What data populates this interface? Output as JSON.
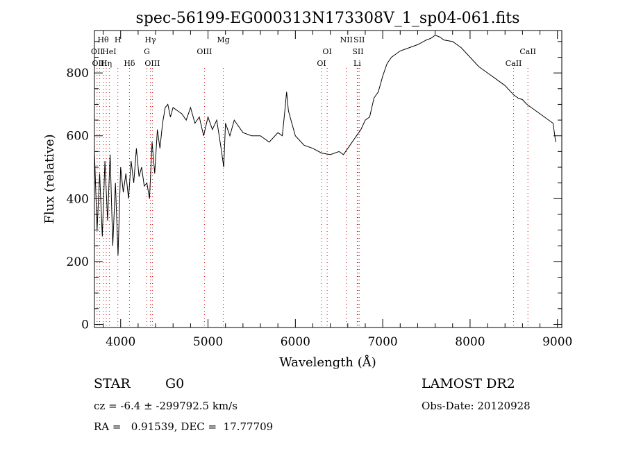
{
  "chart_data": {
    "type": "line",
    "title": "spec-56199-EG000313N173308V_1_sp04-061.fits",
    "xlabel": "Wavelength (Å)",
    "ylabel": "Flux (relative)",
    "xlim": [
      3700,
      9050
    ],
    "ylim": [
      -10,
      935
    ],
    "x_ticks": [
      4000,
      5000,
      6000,
      7000,
      8000,
      9000
    ],
    "y_ticks": [
      0,
      200,
      400,
      600,
      800
    ],
    "grid": false,
    "series": [
      {
        "x": [
          3700,
          3730,
          3760,
          3790,
          3820,
          3850,
          3880,
          3910,
          3940,
          3970,
          4000,
          4030,
          4060,
          4090,
          4120,
          4150,
          4180,
          4210,
          4240,
          4270,
          4300,
          4330,
          4360,
          4390,
          4420,
          4450,
          4480,
          4510,
          4540,
          4570,
          4600,
          4650,
          4700,
          4750,
          4800,
          4850,
          4900,
          4950,
          5000,
          5050,
          5100,
          5150,
          5180,
          5200,
          5250,
          5300,
          5400,
          5500,
          5600,
          5700,
          5800,
          5850,
          5880,
          5900,
          5920,
          5950,
          6000,
          6100,
          6200,
          6300,
          6400,
          6500,
          6550,
          6600,
          6650,
          6700,
          6750,
          6800,
          6850,
          6900,
          6950,
          7000,
          7050,
          7100,
          7150,
          7200,
          7300,
          7400,
          7500,
          7550,
          7600,
          7650,
          7700,
          7800,
          7900,
          8000,
          8100,
          8200,
          8300,
          8400,
          8500,
          8550,
          8600,
          8650,
          8700,
          8800,
          8900,
          8950,
          8980
        ],
        "y": [
          550,
          300,
          480,
          280,
          520,
          330,
          540,
          250,
          450,
          220,
          500,
          420,
          480,
          400,
          520,
          450,
          560,
          470,
          500,
          440,
          450,
          400,
          580,
          480,
          620,
          560,
          640,
          690,
          700,
          660,
          690,
          680,
          670,
          650,
          690,
          640,
          660,
          600,
          660,
          620,
          650,
          560,
          500,
          640,
          600,
          650,
          610,
          600,
          600,
          580,
          610,
          600,
          680,
          740,
          680,
          650,
          600,
          570,
          560,
          545,
          540,
          550,
          540,
          560,
          580,
          600,
          620,
          650,
          660,
          720,
          740,
          790,
          830,
          850,
          860,
          870,
          880,
          890,
          905,
          910,
          920,
          915,
          905,
          900,
          880,
          850,
          820,
          800,
          780,
          760,
          730,
          720,
          715,
          700,
          690,
          670,
          650,
          640,
          580
        ]
      }
    ],
    "line_markers": [
      {
        "x": 3730,
        "label": "OII",
        "row": 2
      },
      {
        "x": 3760,
        "label": "OIII",
        "row": 3
      },
      {
        "x": 3800,
        "label": "Hθ",
        "row": 1
      },
      {
        "x": 3835,
        "label": "Hη",
        "row": 3
      },
      {
        "x": 3870,
        "label": "HeI",
        "row": 2
      },
      {
        "x": 3968,
        "label": "H",
        "row": 1
      },
      {
        "x": 4101,
        "label": "Hδ",
        "row": 3
      },
      {
        "x": 4300,
        "label": "G",
        "row": 2
      },
      {
        "x": 4340,
        "label": "Hγ",
        "row": 1
      },
      {
        "x": 4363,
        "label": "OIII",
        "row": 3
      },
      {
        "x": 4959,
        "label": "OIII",
        "row": 2
      },
      {
        "x": 5175,
        "label": "Mg",
        "row": 1
      },
      {
        "x": 6300,
        "label": "OI",
        "row": 3
      },
      {
        "x": 6364,
        "label": "OI",
        "row": 2
      },
      {
        "x": 6584,
        "label": "NII",
        "row": 1
      },
      {
        "x": 6708,
        "label": "Li",
        "row": 3
      },
      {
        "x": 6717,
        "label": "SII",
        "row": 2
      },
      {
        "x": 6731,
        "label": "SII",
        "row": 1
      },
      {
        "x": 8498,
        "label": "CaII",
        "row": 3
      },
      {
        "x": 8662,
        "label": "CaII",
        "row": 2
      }
    ]
  },
  "info": {
    "class_label": "STAR",
    "subclass": "G0",
    "survey": "LAMOST DR2",
    "cz": "cz = -6.4 ± -299792.5 km/s",
    "obs_date": "Obs-Date: 20120928",
    "coords": "RA =   0.91539, DEC =  17.77709"
  }
}
